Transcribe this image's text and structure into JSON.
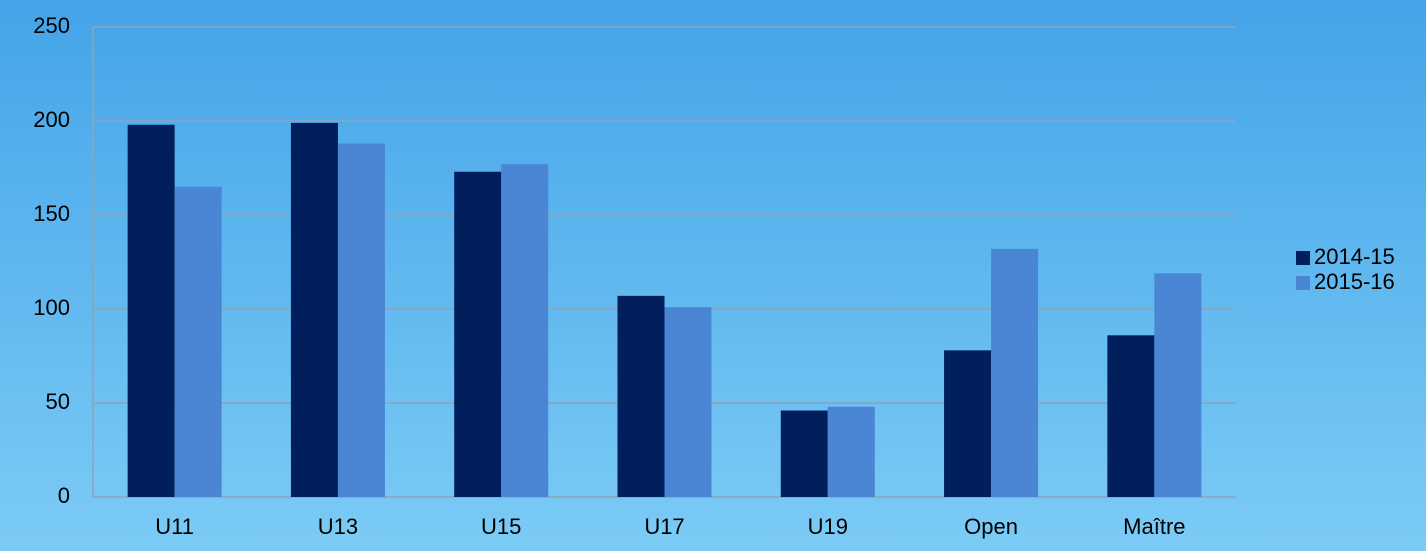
{
  "chart_data": {
    "type": "bar",
    "categories": [
      "U11",
      "U13",
      "U15",
      "U17",
      "U19",
      "Open",
      "Maître"
    ],
    "series": [
      {
        "name": "2014-15",
        "color": "#001f5c",
        "values": [
          198,
          199,
          173,
          107,
          46,
          78,
          86
        ]
      },
      {
        "name": "2015-16",
        "color": "#4a86d4",
        "values": [
          165,
          188,
          177,
          101,
          48,
          132,
          119
        ]
      }
    ],
    "ylim": [
      0,
      250
    ],
    "yticks": [
      0,
      50,
      100,
      150,
      200,
      250
    ],
    "grid": true,
    "legend": "right"
  }
}
